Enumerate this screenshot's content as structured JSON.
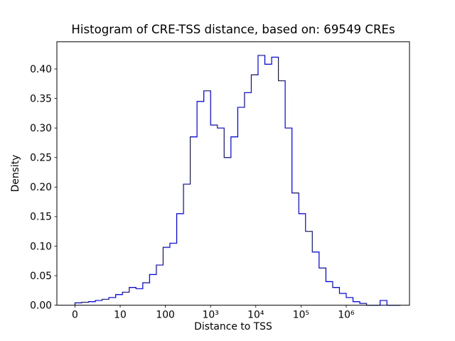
{
  "window": {
    "background": "#ffffff"
  },
  "chart_data": {
    "type": "step-histogram",
    "title": "Histogram of CRE-TSS distance, based on: 69549 CREs",
    "xlabel": "Distance to TSS",
    "ylabel": "Density",
    "n_samples": "69549",
    "line_color": "#0000ff",
    "axis_color": "#000000",
    "grid": false,
    "legend": false,
    "x_scale_note": "x axis is log10 of distance; tick '0' marks zero distance at the origin",
    "xlim_log10": [
      -0.4,
      7.4
    ],
    "ylim": [
      0,
      0.446
    ],
    "x_ticks": [
      {
        "pos": 0,
        "label": "0"
      },
      {
        "pos": 1,
        "label": "10"
      },
      {
        "pos": 2,
        "label": "100"
      },
      {
        "pos": 3,
        "label": "10³"
      },
      {
        "pos": 4,
        "label": "10⁴"
      },
      {
        "pos": 5,
        "label": "10⁵"
      },
      {
        "pos": 6,
        "label": "10⁶"
      }
    ],
    "y_ticks": [
      {
        "pos": 0.0,
        "label": "0.00"
      },
      {
        "pos": 0.05,
        "label": "0.05"
      },
      {
        "pos": 0.1,
        "label": "0.10"
      },
      {
        "pos": 0.15,
        "label": "0.15"
      },
      {
        "pos": 0.2,
        "label": "0.20"
      },
      {
        "pos": 0.25,
        "label": "0.25"
      },
      {
        "pos": 0.3,
        "label": "0.30"
      },
      {
        "pos": 0.35,
        "label": "0.35"
      },
      {
        "pos": 0.4,
        "label": "0.40"
      }
    ],
    "bin_start_log10": 0,
    "bin_width_log10": 0.15,
    "bin_values": [
      0.004,
      0.005,
      0.006,
      0.008,
      0.01,
      0.013,
      0.018,
      0.022,
      0.03,
      0.028,
      0.038,
      0.052,
      0.068,
      0.098,
      0.105,
      0.155,
      0.205,
      0.285,
      0.345,
      0.363,
      0.305,
      0.3,
      0.25,
      0.285,
      0.335,
      0.36,
      0.39,
      0.423,
      0.408,
      0.42,
      0.38,
      0.3,
      0.19,
      0.155,
      0.125,
      0.09,
      0.063,
      0.04,
      0.03,
      0.02,
      0.013,
      0.006,
      0.003,
      0.0,
      0.0,
      0.008,
      0.0,
      0.0
    ]
  }
}
